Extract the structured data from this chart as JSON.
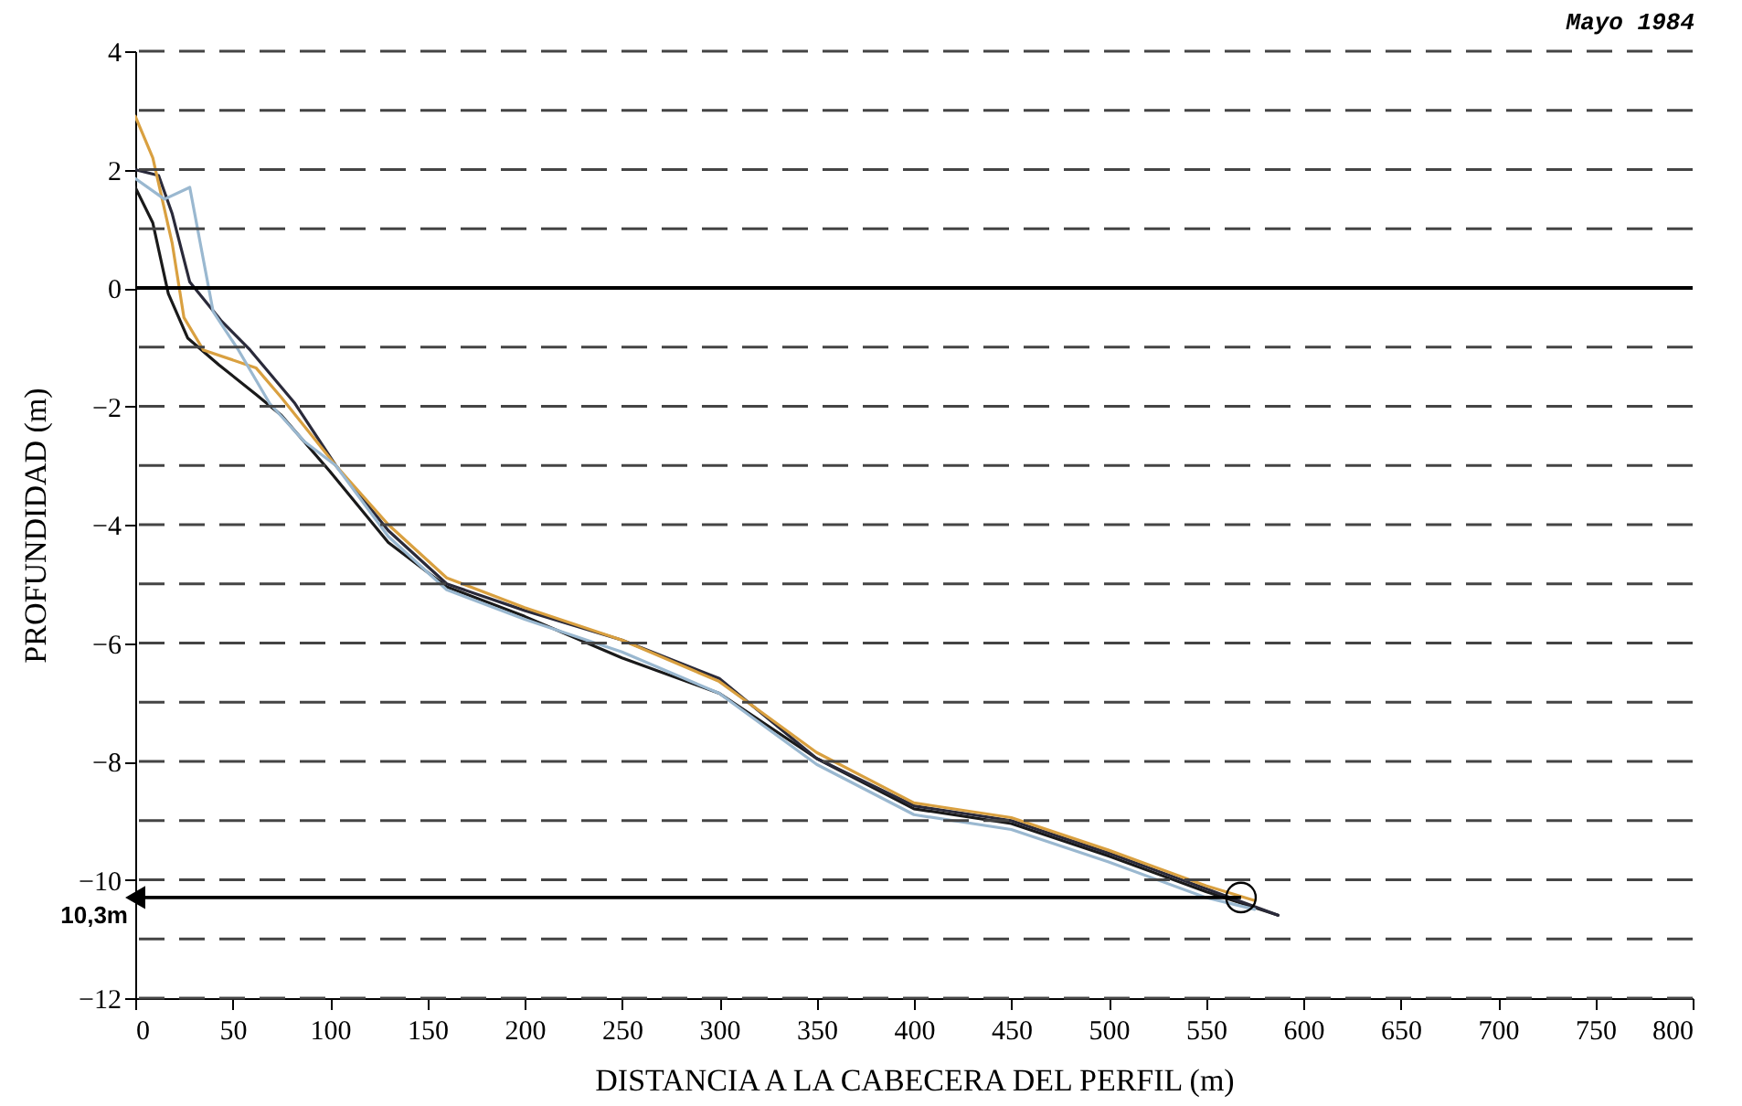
{
  "chart_data": {
    "type": "line",
    "xlabel": "DISTANCIA A LA CABECERA DEL PERFIL (m)",
    "ylabel": "PROFUNDIDAD (m)",
    "annotations": [
      {
        "text": "10,3m",
        "x": 568,
        "y": -10.3
      },
      "Mayo 1984"
    ],
    "xlim": [
      0,
      800
    ],
    "xticks": [
      0,
      50,
      100,
      150,
      200,
      250,
      300,
      350,
      400,
      450,
      500,
      550,
      600,
      650,
      700,
      750,
      800
    ],
    "ylim": [
      -12,
      4
    ],
    "yticks": [
      -12,
      {
        "value": -11,
        "label": null
      },
      -10,
      {
        "value": -9,
        "label": null
      },
      -8,
      {
        "value": -7,
        "label": null
      },
      -6,
      {
        "value": -5,
        "label": null
      },
      -4,
      {
        "value": -3,
        "label": null
      },
      -2,
      {
        "value": -1,
        "label": null
      },
      0,
      {
        "value": 1,
        "label": null
      },
      2,
      {
        "value": 3,
        "label": null
      },
      4
    ],
    "grid": "y",
    "line_style": "solid",
    "ref_lines": [
      {
        "axis": "y",
        "value": 0,
        "color": "#000000",
        "line_style": "solid"
      }
    ],
    "series": [
      {
        "color": "#1a1a1a",
        "x": [
          0,
          9,
          17,
          27,
          43,
          62,
          75,
          100,
          130,
          160,
          200,
          250,
          300,
          350,
          400,
          450,
          500,
          550,
          587
        ],
        "values": [
          1.7,
          1.1,
          -0.1,
          -0.85,
          -1.3,
          -1.8,
          -2.15,
          -3.1,
          -4.3,
          -5.05,
          -5.55,
          -6.25,
          -6.85,
          -7.95,
          -8.8,
          -9.05,
          -9.6,
          -10.2,
          -10.6
        ]
      },
      {
        "color": "#2a2a3a",
        "x": [
          0,
          12,
          19,
          28,
          44,
          59,
          82,
          103,
          130,
          160,
          200,
          250,
          300,
          350,
          400,
          450,
          500,
          550,
          587
        ],
        "values": [
          2.0,
          1.9,
          1.25,
          0.1,
          -0.55,
          -1.05,
          -1.95,
          -3.0,
          -4.1,
          -5.0,
          -5.45,
          -5.95,
          -6.6,
          -7.95,
          -8.75,
          -9.0,
          -9.55,
          -10.15,
          -10.6
        ]
      },
      {
        "color": "#d9a040",
        "x": [
          0,
          9,
          19,
          25,
          35,
          62,
          75,
          103,
          130,
          160,
          200,
          250,
          300,
          350,
          400,
          450,
          500,
          550,
          575
        ],
        "values": [
          2.9,
          2.2,
          0.75,
          -0.5,
          -1.05,
          -1.35,
          -1.85,
          -3.0,
          -4.0,
          -4.9,
          -5.4,
          -5.95,
          -6.65,
          -7.85,
          -8.7,
          -8.95,
          -9.5,
          -10.1,
          -10.35
        ]
      },
      {
        "color": "#9ab8d0",
        "x": [
          0,
          15,
          28,
          40,
          53,
          69,
          87,
          103,
          130,
          160,
          200,
          250,
          300,
          350,
          400,
          450,
          500,
          550,
          575
        ],
        "values": [
          1.85,
          1.5,
          1.7,
          -0.4,
          -1.05,
          -1.95,
          -2.6,
          -3.0,
          -4.2,
          -5.1,
          -5.6,
          -6.15,
          -6.85,
          -8.05,
          -8.9,
          -9.15,
          -9.7,
          -10.3,
          -10.5
        ]
      }
    ]
  }
}
